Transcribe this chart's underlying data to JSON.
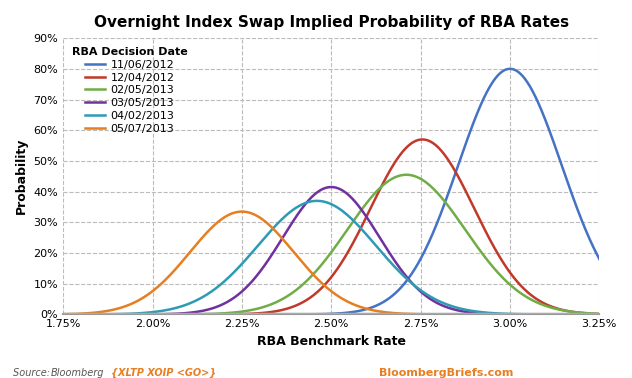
{
  "title": "Overnight Index Swap Implied Probability of RBA Rates",
  "xlabel": "RBA Benchmark Rate",
  "ylabel": "Probability",
  "legend_title": "RBA Decision Date",
  "branding": "BloombergBriefs.com",
  "series": [
    {
      "label": "11/06/2012",
      "color": "#4472C4",
      "mean": 3.0,
      "std": 0.145,
      "peak": 0.8
    },
    {
      "label": "12/04/2012",
      "color": "#C0392B",
      "mean": 2.755,
      "std": 0.145,
      "peak": 0.57
    },
    {
      "label": "02/05/2013",
      "color": "#70AD47",
      "mean": 2.71,
      "std": 0.165,
      "peak": 0.455
    },
    {
      "label": "03/05/2013",
      "color": "#7030A0",
      "mean": 2.5,
      "std": 0.135,
      "peak": 0.415
    },
    {
      "label": "04/02/2013",
      "color": "#2E9BB5",
      "mean": 2.46,
      "std": 0.165,
      "peak": 0.37
    },
    {
      "label": "05/07/2013",
      "color": "#E67E22",
      "mean": 2.25,
      "std": 0.145,
      "peak": 0.335
    }
  ],
  "xlim": [
    1.75,
    3.25
  ],
  "ylim": [
    0,
    0.9
  ],
  "xticks": [
    1.75,
    2.0,
    2.25,
    2.5,
    2.75,
    3.0,
    3.25
  ],
  "yticks": [
    0,
    0.1,
    0.2,
    0.3,
    0.4,
    0.5,
    0.6,
    0.7,
    0.8,
    0.9
  ],
  "background_color": "#FFFFFF",
  "plot_bg_color": "#FFFFFF",
  "grid_color": "#BBBBBB",
  "title_fontsize": 11,
  "label_fontsize": 9,
  "tick_fontsize": 8,
  "legend_fontsize": 8
}
